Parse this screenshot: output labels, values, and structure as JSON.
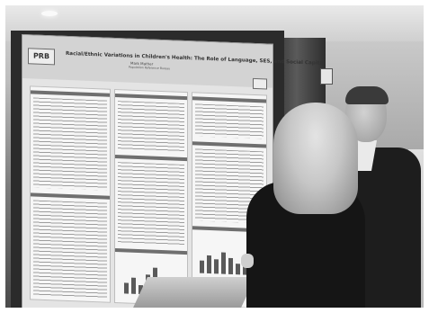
{
  "poster": {
    "logo": "PRB",
    "title": "Racial/Ethnic Variations in Children's Health: The Role of Language, SES, and Social Capital",
    "author": "Mark Mather",
    "affiliation": "Population Reference Bureau"
  },
  "colors": {
    "board": "#2b2b2b",
    "poster_bg": "#e4e4e4",
    "coat": "#151515",
    "hair": "#cfc5b2"
  }
}
